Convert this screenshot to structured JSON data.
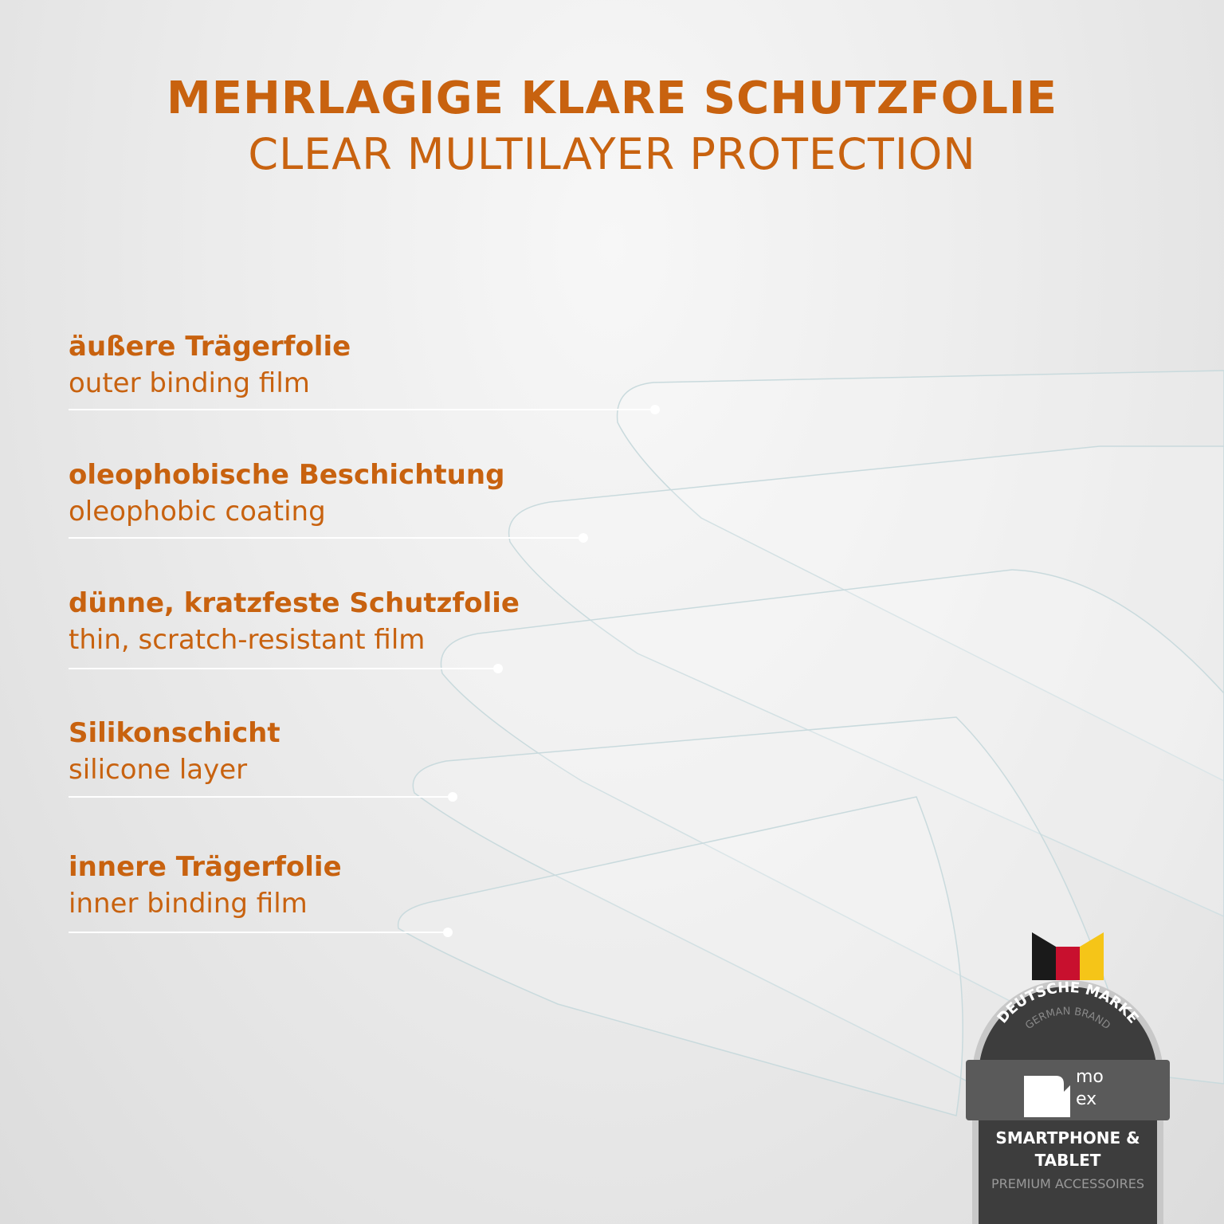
{
  "header": {
    "title_de": "MEHRLAGIGE KLARE SCHUTZFOLIE",
    "title_en": "CLEAR MULTILAYER PROTECTION"
  },
  "layers": [
    {
      "de": "äußere Trägerfolie",
      "en": "outer binding film"
    },
    {
      "de": "oleophobische Beschichtung",
      "en": "oleophobic coating"
    },
    {
      "de": "dünne, kratzfeste Schutzfolie",
      "en": "thin, scratch-resistant film"
    },
    {
      "de": "Silikonschicht",
      "en": "silicone layer"
    },
    {
      "de": "innere Trägerfolie",
      "en": "inner binding film"
    }
  ],
  "badge": {
    "arc_de": "DEUTSCHE MARKE",
    "arc_en": "GERMAN BRAND",
    "logo": "mo ex",
    "line1": "SMARTPHONE &",
    "line2": "TABLET",
    "line3": "PREMIUM ACCESSOIRES",
    "flag_colors": [
      "#1a1a1a",
      "#c8102e",
      "#f5c518"
    ]
  },
  "colors": {
    "accent": "#c8620f"
  }
}
